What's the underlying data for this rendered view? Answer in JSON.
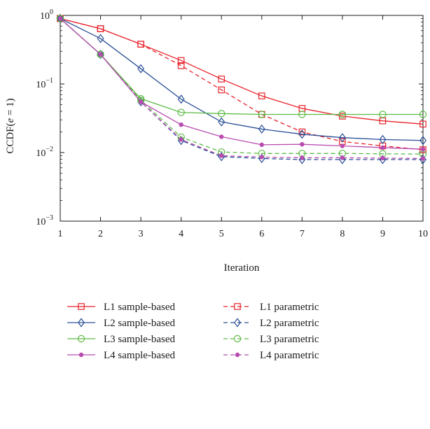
{
  "chart_data": {
    "type": "line",
    "title": "",
    "xlabel": "Iteration",
    "ylabel": "CCDF(e = 1)",
    "ylabel_parts": {
      "prefix": "CCDF(",
      "var": "e",
      "suffix": " = 1)"
    },
    "x": [
      1,
      2,
      3,
      4,
      5,
      6,
      7,
      8,
      9,
      10
    ],
    "xlim": [
      1,
      10
    ],
    "ylim": [
      0.001,
      1
    ],
    "yscale": "log",
    "grid": false,
    "legend_position": "below",
    "x_ticks": [
      "1",
      "2",
      "3",
      "4",
      "5",
      "6",
      "7",
      "8",
      "9",
      "10"
    ],
    "y_ticks": [
      {
        "value": 1,
        "base": "10",
        "exp": "0"
      },
      {
        "value": 0.1,
        "base": "10",
        "exp": "−1"
      },
      {
        "value": 0.01,
        "base": "10",
        "exp": "−2"
      },
      {
        "value": 0.001,
        "base": "10",
        "exp": "−3"
      }
    ],
    "series": [
      {
        "name": "L1 sample-based",
        "color": "#e8222b",
        "dash": "solid",
        "marker": "square",
        "values": [
          0.9,
          0.64,
          0.38,
          0.22,
          0.118,
          0.067,
          0.044,
          0.034,
          0.029,
          0.026
        ]
      },
      {
        "name": "L2 sample-based",
        "color": "#2a4f97",
        "dash": "solid",
        "marker": "diamond",
        "values": [
          0.9,
          0.46,
          0.167,
          0.06,
          0.028,
          0.022,
          0.0185,
          0.0165,
          0.0155,
          0.015
        ]
      },
      {
        "name": "L3 sample-based",
        "color": "#5dbb46",
        "dash": "solid",
        "marker": "circle",
        "values": [
          0.9,
          0.27,
          0.061,
          0.0385,
          0.037,
          0.036,
          0.036,
          0.036,
          0.036,
          0.036
        ]
      },
      {
        "name": "L4 sample-based",
        "color": "#b84cb0",
        "dash": "solid",
        "marker": "dot",
        "values": [
          0.9,
          0.27,
          0.055,
          0.0255,
          0.017,
          0.013,
          0.0132,
          0.0125,
          0.0118,
          0.0112
        ]
      },
      {
        "name": "L1 parametric",
        "color": "#e8222b",
        "dash": "dashed",
        "marker": "square",
        "values": [
          0.9,
          0.64,
          0.38,
          0.185,
          0.082,
          0.036,
          0.02,
          0.0145,
          0.0125,
          0.011
        ]
      },
      {
        "name": "L2 parametric",
        "color": "#2a4f97",
        "dash": "dashed",
        "marker": "diamond",
        "values": [
          0.9,
          0.27,
          0.055,
          0.015,
          0.0087,
          0.0082,
          0.0079,
          0.0079,
          0.0079,
          0.0079
        ]
      },
      {
        "name": "L3 parametric",
        "color": "#5dbb46",
        "dash": "dashed",
        "marker": "circle",
        "values": [
          0.9,
          0.27,
          0.058,
          0.0168,
          0.0102,
          0.0097,
          0.0097,
          0.0097,
          0.0096,
          0.0095
        ]
      },
      {
        "name": "L4 parametric",
        "color": "#b84cb0",
        "dash": "dashed",
        "marker": "dot",
        "values": [
          0.9,
          0.27,
          0.055,
          0.0155,
          0.009,
          0.0086,
          0.0084,
          0.0084,
          0.0083,
          0.0082
        ]
      }
    ]
  }
}
